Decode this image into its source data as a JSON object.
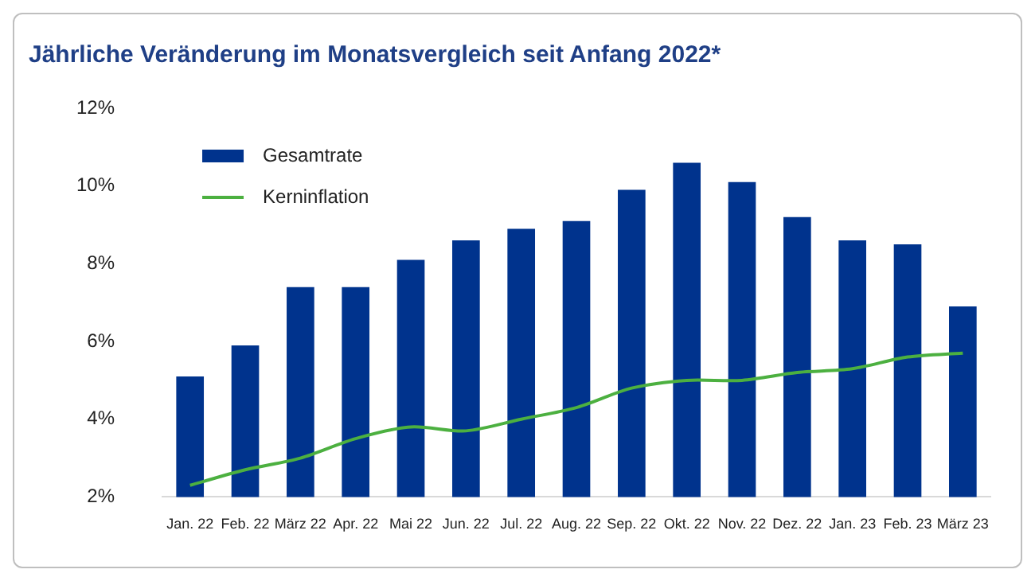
{
  "chart_data": {
    "type": "bar",
    "title": "Jährliche Veränderung im Monatsvergleich seit Anfang 2022*",
    "categories": [
      "Jan. 22",
      "Feb. 22",
      "März 22",
      "Apr. 22",
      "Mai 22",
      "Jun. 22",
      "Jul. 22",
      "Aug. 22",
      "Sep. 22",
      "Okt. 22",
      "Nov. 22",
      "Dez. 22",
      "Jan. 23",
      "Feb. 23",
      "März 23"
    ],
    "series": [
      {
        "name": "Gesamtrate",
        "color": "#00338d",
        "values": [
          5.1,
          5.9,
          7.4,
          7.4,
          8.1,
          8.6,
          8.9,
          9.1,
          9.9,
          10.6,
          10.1,
          9.2,
          8.6,
          8.5,
          6.9
        ]
      },
      {
        "name": "Kerninflation",
        "type": "line",
        "color": "#4cb040",
        "values": [
          2.3,
          2.7,
          3.0,
          3.5,
          3.8,
          3.7,
          4.0,
          4.3,
          4.8,
          5.0,
          5.0,
          5.2,
          5.3,
          5.6,
          5.7
        ]
      }
    ],
    "ylim": [
      2,
      12
    ],
    "yticks": [
      {
        "value": 2,
        "label": "2%"
      },
      {
        "value": 4,
        "label": "4%"
      },
      {
        "value": 6,
        "label": "6%"
      },
      {
        "value": 8,
        "label": "8%"
      },
      {
        "value": 10,
        "label": "10%"
      },
      {
        "value": 12,
        "label": "12%"
      }
    ],
    "grid": false,
    "legend": "top left",
    "marker": "none"
  }
}
